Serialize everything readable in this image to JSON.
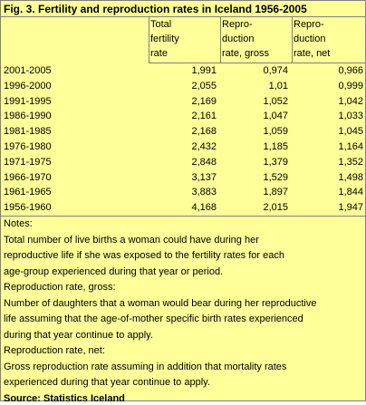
{
  "title": "Fig. 3. Fertility and reproduction rates in Iceland 1956-2005",
  "table": {
    "header": [
      [
        "Total",
        "fertility",
        "rate"
      ],
      [
        "Repro-",
        "duction",
        "rate, gross"
      ],
      [
        "Repro-",
        "duction",
        "rate, net"
      ]
    ],
    "rows": [
      [
        "2001-2005",
        "1,991",
        "0,974",
        "0,966"
      ],
      [
        "1996-2000",
        "2,055",
        "1,01",
        "0,999"
      ],
      [
        "1991-1995",
        "2,169",
        "1,052",
        "1,042"
      ],
      [
        "1986-1990",
        "2,161",
        "1,047",
        "1,033"
      ],
      [
        "1981-1985",
        "2,168",
        "1,059",
        "1,045"
      ],
      [
        "1976-1980",
        "2,432",
        "1,185",
        "1,164"
      ],
      [
        "1971-1975",
        "2,848",
        "1,379",
        "1,352"
      ],
      [
        "1966-1970",
        "3,137",
        "1,529",
        "1,498"
      ],
      [
        "1961-1965",
        "3,883",
        "1,897",
        "1,844"
      ],
      [
        "1956-1960",
        "4,168",
        "2,015",
        "1,947"
      ]
    ]
  },
  "notes": [
    "Notes:",
    "Total number of live births a woman could have during her",
    "reproductive life if she was exposed to the fertility rates for each",
    "age-group experienced during that year or period.",
    "Reproduction rate, gross:",
    "Number of daughters that a woman would bear during her reproductive",
    "life assuming that the age-of-mother specific birth rates experienced",
    "during that year continue to apply.",
    "Reproduction rate, net:",
    "Gross reproduction rate assuming in addition that mortality rates",
    "experienced during that year continue to apply."
  ],
  "source": "Source: Statistics Iceland"
}
